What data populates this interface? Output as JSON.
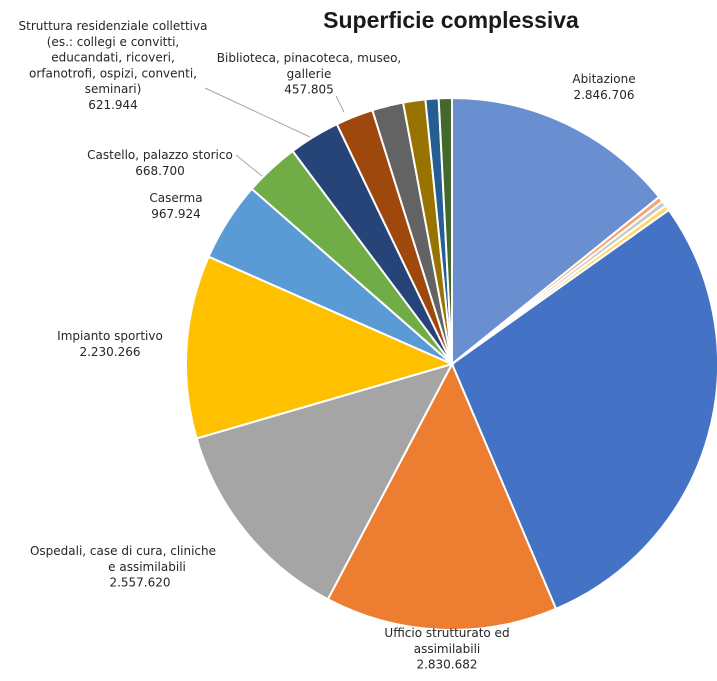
{
  "chart_data": {
    "type": "pie",
    "title": "Superficie complessiva",
    "start_angle_deg": 0,
    "direction": "clockwise",
    "legend": "none",
    "slices": [
      {
        "label": "Abitazione",
        "value": "2.846.706",
        "v": 2846706,
        "color": "#6a8fd0"
      },
      {
        "label": "",
        "value": "",
        "v": 65000,
        "color": "#f4a474"
      },
      {
        "label": "",
        "value": "",
        "v": 65000,
        "color": "#c9c9c9"
      },
      {
        "label": "",
        "value": "",
        "v": 65000,
        "color": "#ffd966"
      },
      {
        "label": "",
        "value": "",
        "v": 5700000,
        "color": "#4472c4"
      },
      {
        "label": "Ufficio strutturato ed assimilabili",
        "value": "2.830.682",
        "v": 2830682,
        "color": "#ed7d31"
      },
      {
        "label": "Ospedali, case di cura, cliniche e assimilabili",
        "value": "2.557.620",
        "v": 2557620,
        "color": "#a5a5a5"
      },
      {
        "label": "Impianto sportivo",
        "value": "2.230.266",
        "v": 2230266,
        "color": "#ffc000"
      },
      {
        "label": "Caserma",
        "value": "967.924",
        "v": 967924,
        "color": "#5b9bd5"
      },
      {
        "label": "Castello, palazzo storico",
        "value": "668.700",
        "v": 668700,
        "color": "#70ad47"
      },
      {
        "label": "Struttura residenziale collettiva (es.: collegi e convitti, educandati, ricoveri, orfanotrofi, ospizi, conventi, seminari)",
        "value": "621.944",
        "v": 621944,
        "color": "#264478"
      },
      {
        "label": "Biblioteca, pinacoteca, museo, gallerie",
        "value": "457.805",
        "v": 457805,
        "color": "#9e480e"
      },
      {
        "label": "",
        "value": "",
        "v": 380000,
        "color": "#636363"
      },
      {
        "label": "",
        "value": "",
        "v": 270000,
        "color": "#997300"
      },
      {
        "label": "",
        "value": "",
        "v": 160000,
        "color": "#255e91"
      },
      {
        "label": "",
        "value": "",
        "v": 160000,
        "color": "#43682b"
      }
    ],
    "data_labels": [
      {
        "slice": 0,
        "lines": [
          "Abitazione",
          "2.846.706"
        ]
      },
      {
        "slice": 5,
        "lines": [
          "Ufficio strutturato ed",
          "assimilabili",
          "2.830.682"
        ]
      },
      {
        "slice": 6,
        "lines": [
          "Ospedali, case di cura, cliniche",
          "e assimilabili",
          "2.557.620"
        ]
      },
      {
        "slice": 7,
        "lines": [
          "Impianto sportivo",
          "2.230.266"
        ]
      },
      {
        "slice": 8,
        "lines": [
          "Caserma",
          "967.924"
        ]
      },
      {
        "slice": 9,
        "lines": [
          "Castello, palazzo storico",
          "668.700"
        ]
      },
      {
        "slice": 10,
        "lines": [
          "Struttura residenziale collettiva",
          "(es.: collegi e convitti,",
          "educandati, ricoveri,",
          "orfanotrofi, ospizi, conventi,",
          "seminari)",
          "621.944"
        ]
      },
      {
        "slice": 11,
        "lines": [
          "Biblioteca, pinacoteca, museo,",
          "gallerie",
          "457.805"
        ]
      }
    ]
  }
}
